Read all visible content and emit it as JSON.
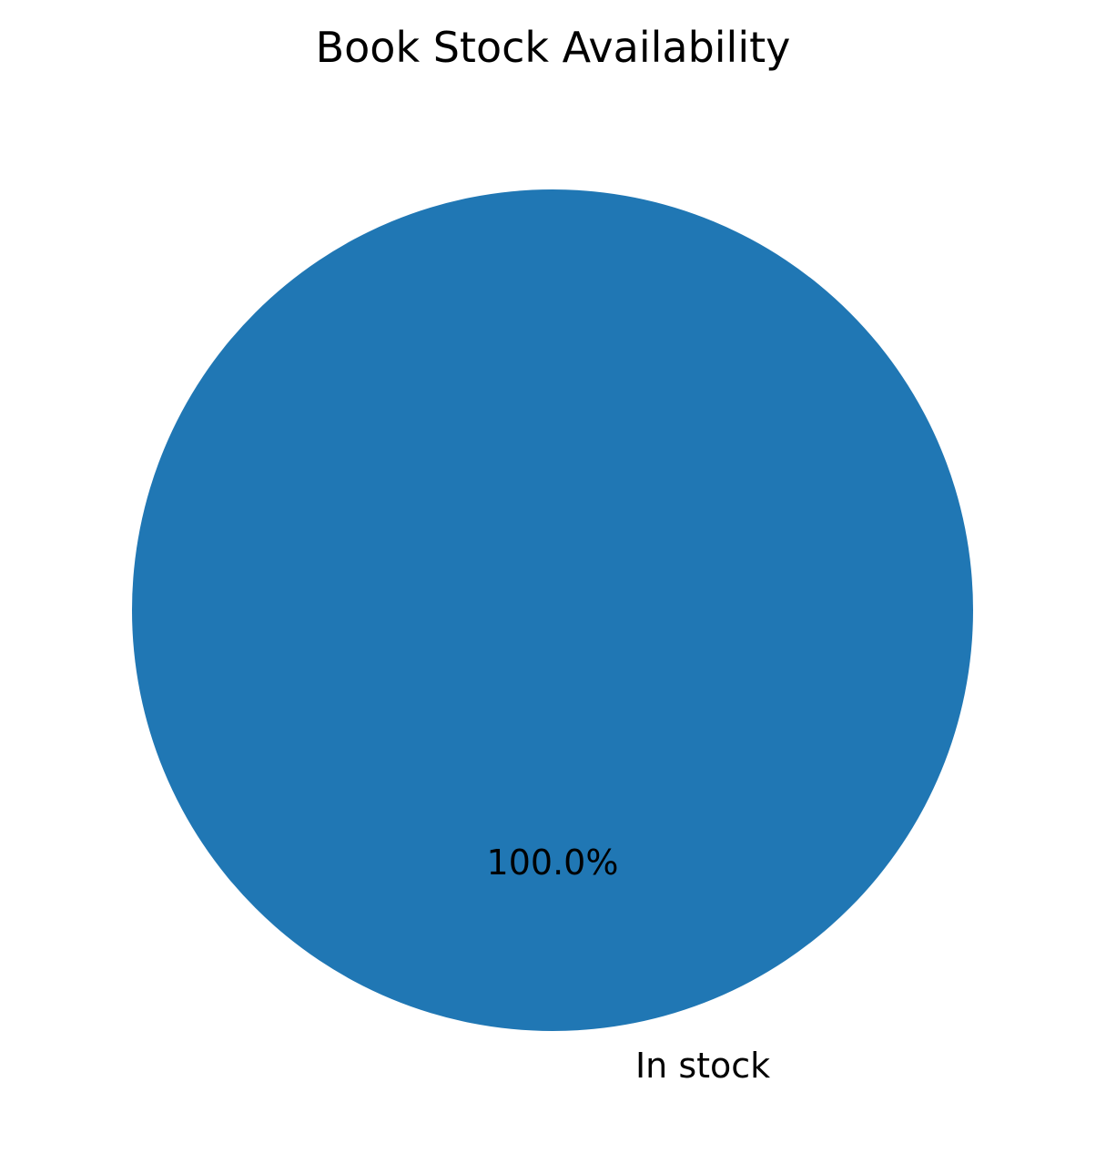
{
  "chart_data": {
    "type": "pie",
    "title": "Book Stock Availability",
    "slices": [
      {
        "label": "In stock",
        "value": 100.0,
        "pct_label": "100.0%",
        "color": "#2077b4"
      }
    ],
    "legend": "none"
  }
}
